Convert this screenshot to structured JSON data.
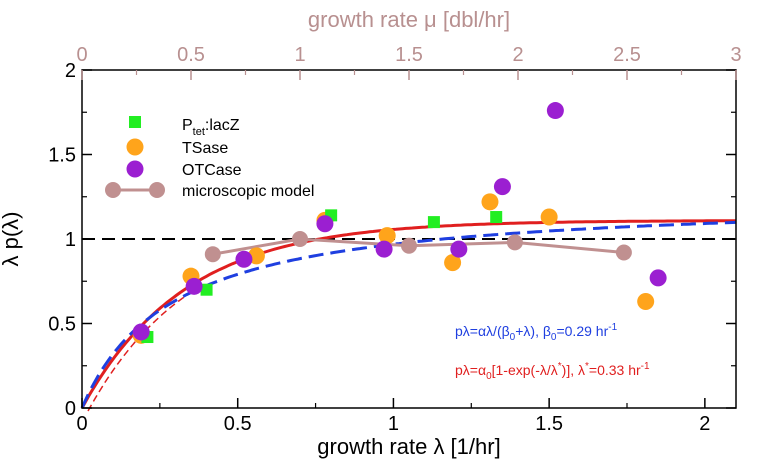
{
  "chart_data": {
    "type": "scatter",
    "xlabel": "growth rate λ  [1/hr]",
    "ylabel": "λ p(λ)",
    "top_xlabel": "growth rate μ  [dbl/hr]",
    "xlim": [
      0,
      2.1
    ],
    "ylim": [
      0,
      2
    ],
    "top_xlim": [
      0,
      3
    ],
    "x_ticks": [
      "0",
      "0.5",
      "1",
      "1.5",
      "2"
    ],
    "y_ticks": [
      "0",
      "0.5",
      "1",
      "1.5",
      "2"
    ],
    "top_x_ticks": [
      "0",
      "0.5",
      "1",
      "1.5",
      "2",
      "2.5",
      "3"
    ],
    "legend_position": "top-left",
    "colors": {
      "ptet": "#22ee22",
      "tsase": "#ffa41b",
      "otcase": "#9b1fd1",
      "model": "#c09090",
      "fit_beta": "#1f3fe0",
      "fit_exp": "#e01f1f",
      "reference": "#000000",
      "top_axis": "#b89090"
    },
    "series": [
      {
        "name": "P_tet:lacZ",
        "legend_main": "P",
        "legend_sub": "tet",
        "legend_rest": ":lacZ",
        "marker": "square",
        "points": [
          [
            0.21,
            0.42
          ],
          [
            0.4,
            0.7
          ],
          [
            0.8,
            1.14
          ],
          [
            1.13,
            1.1
          ],
          [
            1.33,
            1.13
          ]
        ]
      },
      {
        "name": "TSase",
        "marker": "circle",
        "points": [
          [
            0.19,
            0.43
          ],
          [
            0.35,
            0.78
          ],
          [
            0.56,
            0.9
          ],
          [
            0.78,
            1.11
          ],
          [
            0.98,
            1.02
          ],
          [
            1.19,
            0.86
          ],
          [
            1.31,
            1.22
          ],
          [
            1.5,
            1.13
          ],
          [
            1.81,
            0.63
          ]
        ]
      },
      {
        "name": "OTCase",
        "marker": "circle",
        "points": [
          [
            0.19,
            0.45
          ],
          [
            0.36,
            0.72
          ],
          [
            0.52,
            0.88
          ],
          [
            0.78,
            1.09
          ],
          [
            0.97,
            0.94
          ],
          [
            1.21,
            0.94
          ],
          [
            1.35,
            1.31
          ],
          [
            1.52,
            1.76
          ],
          [
            1.85,
            0.77
          ]
        ]
      },
      {
        "name": "microscopic model",
        "marker": "line-circle",
        "points": [
          [
            0.42,
            0.91
          ],
          [
            0.7,
            1.0
          ],
          [
            1.05,
            0.96
          ],
          [
            1.39,
            0.98
          ],
          [
            1.74,
            0.92
          ]
        ]
      }
    ],
    "reference_line": {
      "y": 1
    },
    "fits": [
      {
        "id": "beta",
        "style": "dashed",
        "alpha": 1.25,
        "beta0": 0.29,
        "label_parts": [
          "pλ=αλ/(β",
          "0",
          "+λ),  β",
          "0",
          "=0.29 hr",
          "-1"
        ]
      },
      {
        "id": "exp",
        "style": "solid",
        "alpha0": 1.11,
        "lambda_star": 0.33,
        "label_parts": [
          "pλ=α",
          "0",
          "[1-exp(-λ/λ",
          "*",
          ")],  λ",
          "*",
          "=0.33 hr",
          "-1"
        ]
      }
    ]
  }
}
